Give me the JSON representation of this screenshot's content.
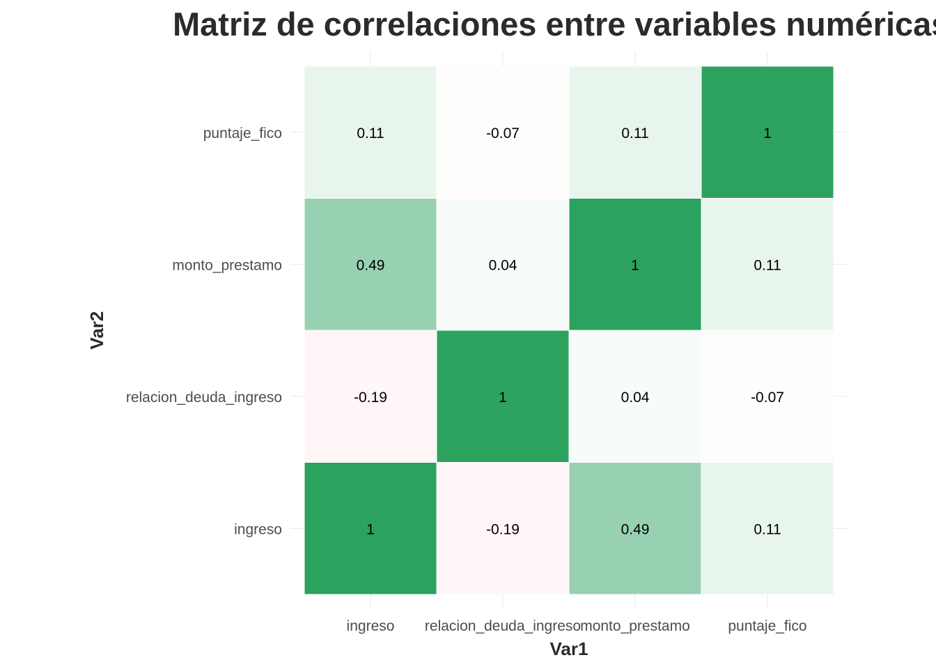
{
  "chart_data": {
    "type": "heatmap",
    "title": "Matriz de correlaciones entre variables numéricas",
    "xlabel": "Var1",
    "ylabel": "Var2",
    "x_categories": [
      "ingreso",
      "relacion_deuda_ingreso",
      "monto_prestamo",
      "puntaje_fico"
    ],
    "y_categories": [
      "ingreso",
      "relacion_deuda_ingreso",
      "monto_prestamo",
      "puntaje_fico"
    ],
    "values": [
      [
        1,
        -0.19,
        0.49,
        0.11
      ],
      [
        -0.19,
        1,
        0.04,
        -0.07
      ],
      [
        0.49,
        0.04,
        1,
        0.11
      ],
      [
        0.11,
        -0.07,
        0.11,
        1
      ]
    ],
    "value_labels": [
      [
        "1",
        "-0.19",
        "0.49",
        "0.11"
      ],
      [
        "-0.19",
        "1",
        "0.04",
        "-0.07"
      ],
      [
        "0.49",
        "0.04",
        "1",
        "0.11"
      ],
      [
        "0.11",
        "-0.07",
        "0.11",
        "1"
      ]
    ],
    "color_scale": {
      "low": "#ffd1d6",
      "mid": "#ffffff",
      "high": "#2ca25f",
      "domain": [
        -1,
        0,
        1
      ]
    },
    "grid": true,
    "legend": "none"
  }
}
